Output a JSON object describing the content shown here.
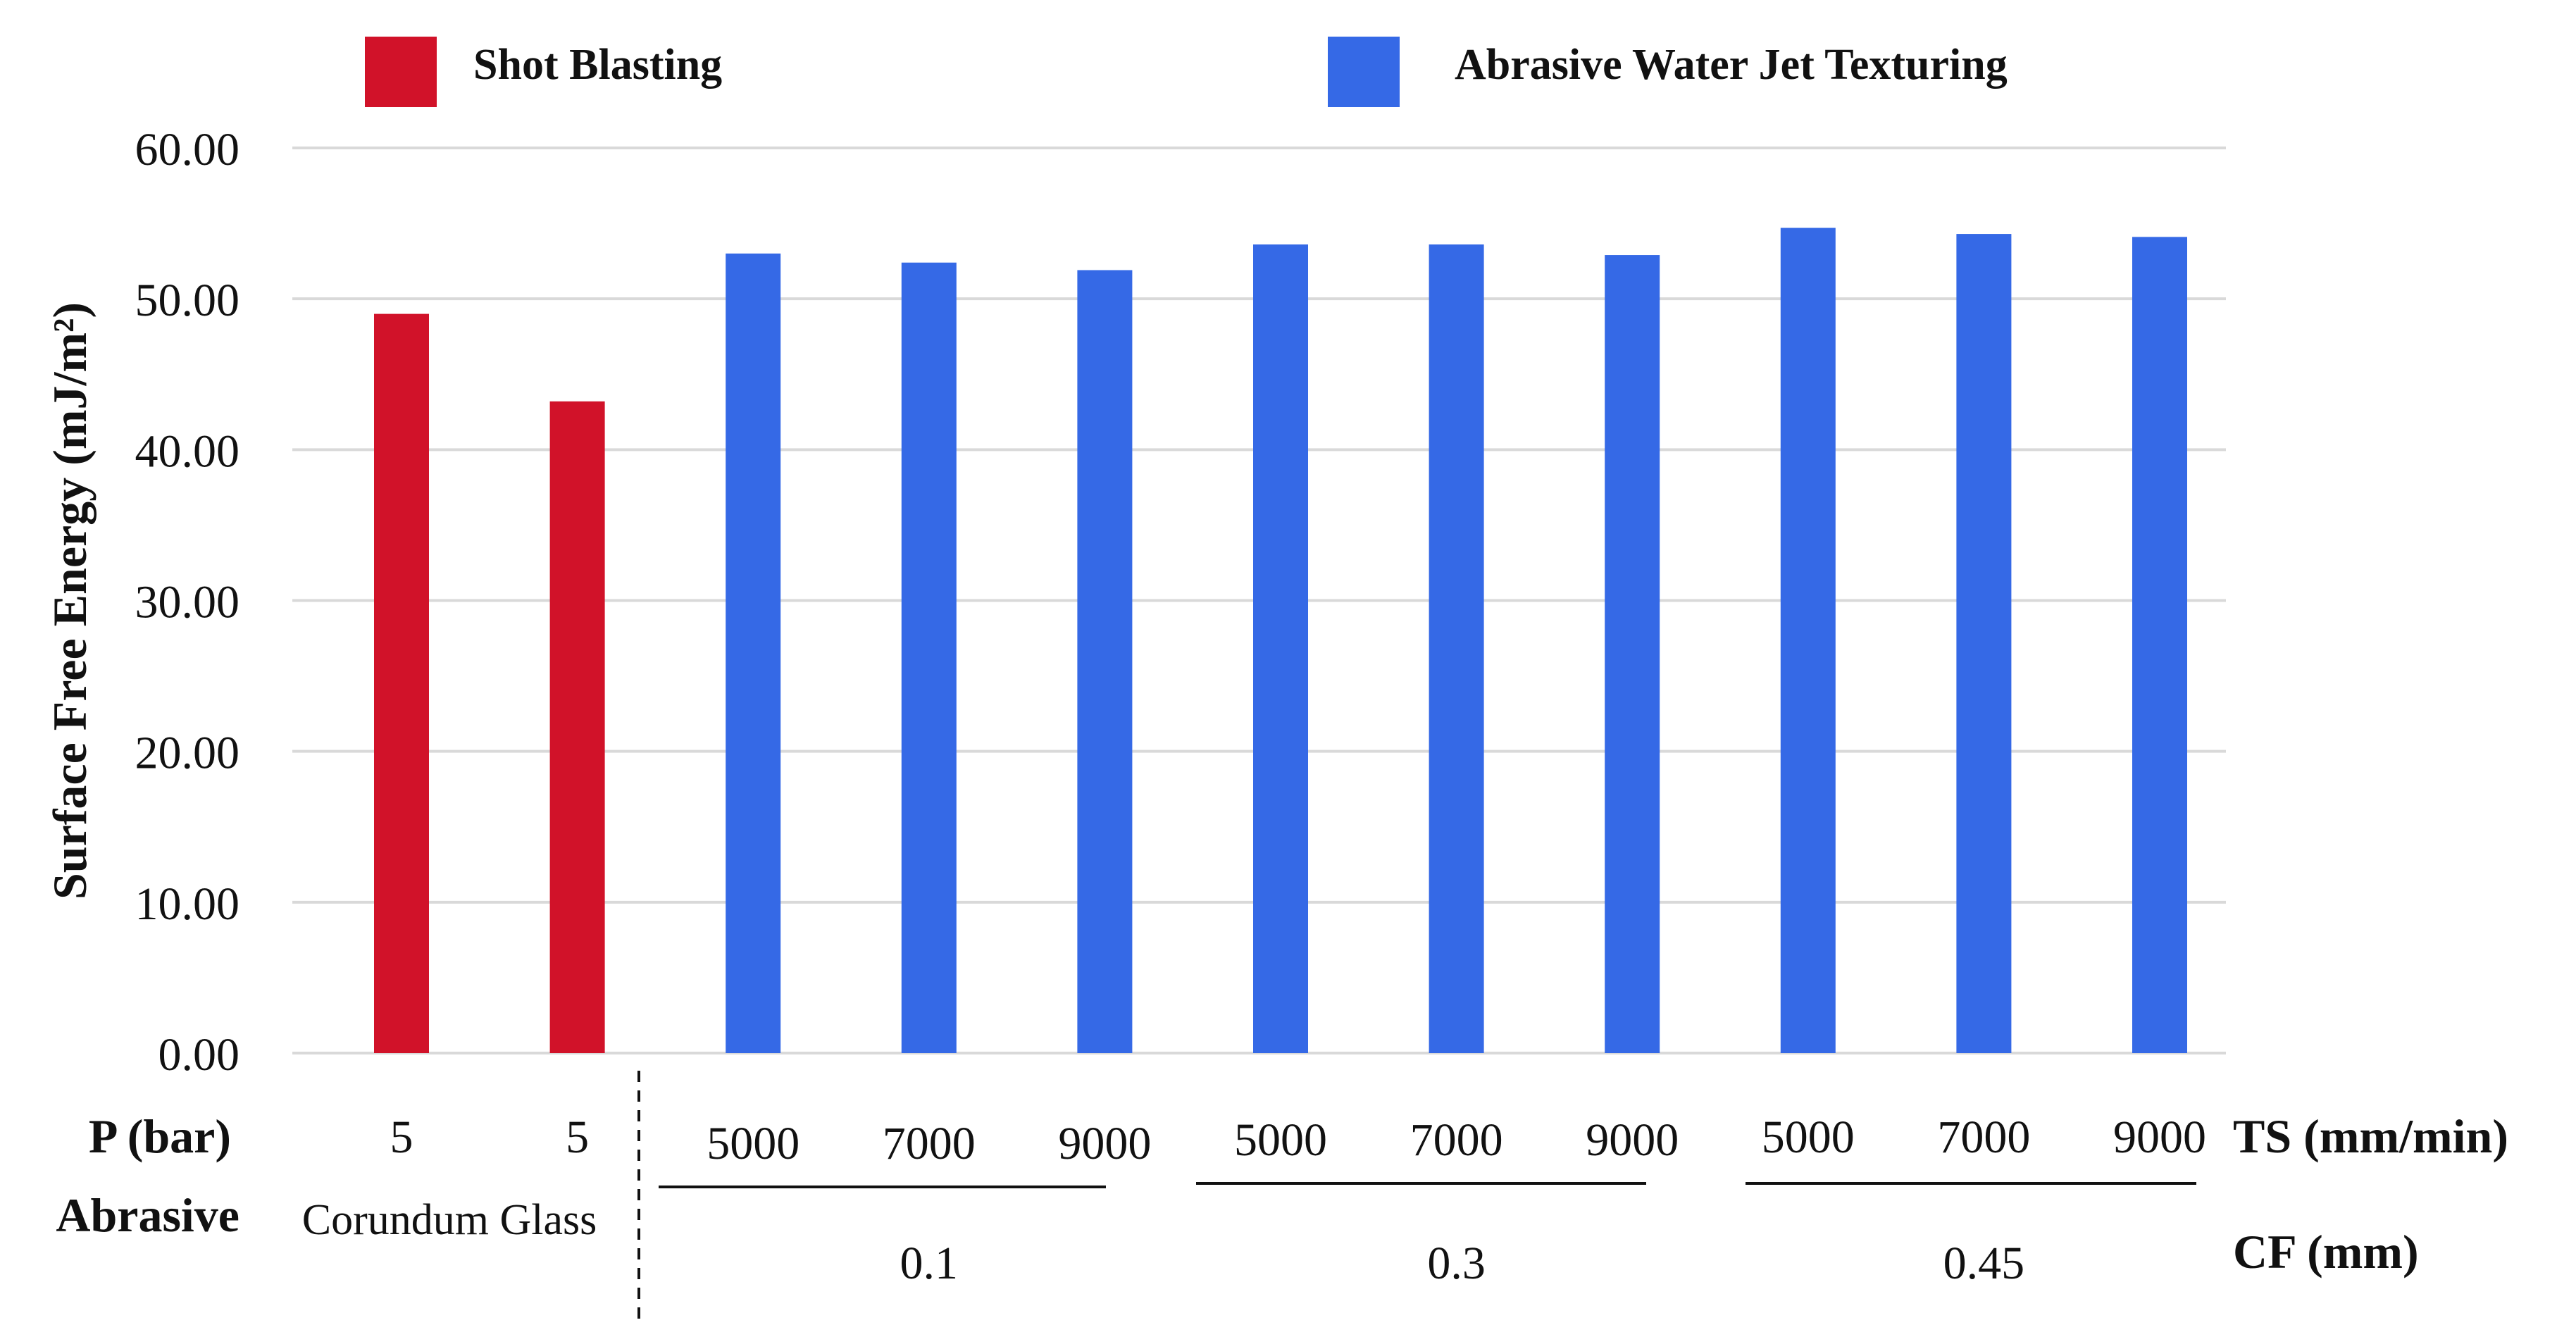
{
  "chart_data": {
    "type": "bar",
    "ylabel": "Surface Free Energy (mJ/m²)",
    "ylim": [
      0,
      60
    ],
    "yticks": [
      "0.00",
      "10.00",
      "20.00",
      "30.00",
      "40.00",
      "50.00",
      "60.00"
    ],
    "grid": true,
    "legend": [
      {
        "name": "Shot Blasting",
        "color": "#d11229"
      },
      {
        "name": "Abrasive Water Jet Texturing",
        "color": "#3569e6"
      }
    ],
    "series": [
      {
        "name": "Shot Blasting",
        "color": "#d11229",
        "values": [
          49.0,
          43.2
        ]
      },
      {
        "name": "Abrasive Water Jet Texturing",
        "color": "#3569e6",
        "values": [
          53.0,
          52.4,
          51.9,
          53.6,
          53.6,
          52.9,
          54.7,
          54.3,
          54.1
        ]
      }
    ],
    "shot_blasting": {
      "row_label_p": "P (bar)",
      "row_label_abrasive": "Abrasive",
      "pressure": [
        "5",
        "5"
      ],
      "abrasive_text": "Corundum Glass"
    },
    "awj": {
      "ts_label": "TS (mm/min)",
      "cf_label": "CF (mm)",
      "ts_values": [
        "5000",
        "7000",
        "9000",
        "5000",
        "7000",
        "9000",
        "5000",
        "7000",
        "9000"
      ],
      "cf_groups": [
        "0.1",
        "0.3",
        "0.45"
      ]
    }
  }
}
